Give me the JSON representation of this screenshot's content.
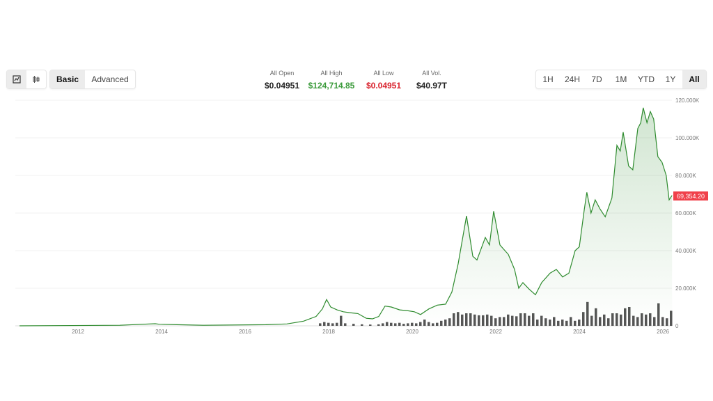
{
  "toolbar": {
    "chart_types": [
      "line-chart-icon",
      "candlestick-icon"
    ],
    "modes": [
      "Basic",
      "Advanced"
    ],
    "active_mode": "Basic",
    "ranges": [
      "1H",
      "24H",
      "7D",
      "1M",
      "YTD",
      "1Y",
      "All"
    ],
    "active_range": "All"
  },
  "stats": [
    {
      "label": "All Open",
      "value": "$0.04951",
      "color": "#222222"
    },
    {
      "label": "All High",
      "value": "$124,714.85",
      "color": "#3a9a3a"
    },
    {
      "label": "All Low",
      "value": "$0.04951",
      "color": "#d9232e"
    },
    {
      "label": "All Vol.",
      "value": "$40.97T",
      "color": "#222222"
    }
  ],
  "chart_data": {
    "type": "area",
    "line_color": "#2e8b2e",
    "current_price_label": "69,354.20",
    "current_price_color": "#f0414b",
    "x_ticks": [
      "2012",
      "2014",
      "2016",
      "2018",
      "2020",
      "2022",
      "2024",
      "2026"
    ],
    "y_ticks": [
      "0",
      "20.000K",
      "40.000K",
      "60.000K",
      "80.000K",
      "100.000K",
      "120.000K"
    ],
    "ylim": [
      0,
      120000
    ],
    "xlim": [
      2010.6,
      2026.3
    ],
    "grid": true,
    "price": {
      "x": [
        2010.6,
        2013.0,
        2013.85,
        2013.95,
        2015.0,
        2016.5,
        2017.0,
        2017.4,
        2017.7,
        2017.85,
        2017.95,
        2018.05,
        2018.2,
        2018.35,
        2018.5,
        2018.7,
        2018.9,
        2019.05,
        2019.2,
        2019.35,
        2019.5,
        2019.7,
        2019.9,
        2020.05,
        2020.2,
        2020.4,
        2020.6,
        2020.8,
        2020.95,
        2021.1,
        2021.3,
        2021.45,
        2021.55,
        2021.75,
        2021.85,
        2021.95,
        2022.1,
        2022.3,
        2022.45,
        2022.55,
        2022.65,
        2022.8,
        2022.95,
        2023.1,
        2023.3,
        2023.45,
        2023.6,
        2023.75,
        2023.9,
        2024.0,
        2024.12,
        2024.18,
        2024.28,
        2024.38,
        2024.5,
        2024.62,
        2024.78,
        2024.9,
        2024.98,
        2025.05,
        2025.18,
        2025.28,
        2025.4,
        2025.47,
        2025.53,
        2025.62,
        2025.7,
        2025.78,
        2025.88,
        2025.98,
        2026.08,
        2026.15,
        2026.22
      ],
      "y": [
        0,
        300,
        1100,
        800,
        300,
        600,
        1000,
        2500,
        5000,
        9000,
        14000,
        10000,
        8500,
        7500,
        7000,
        6500,
        4000,
        3700,
        5000,
        10500,
        10000,
        8500,
        8000,
        7500,
        6000,
        9000,
        11000,
        11500,
        18000,
        33000,
        58500,
        37000,
        35000,
        47000,
        43000,
        61000,
        43000,
        38000,
        30000,
        20000,
        23000,
        19500,
        16500,
        23000,
        28000,
        30000,
        26000,
        28000,
        40000,
        42000,
        62000,
        71000,
        60000,
        67000,
        62000,
        58000,
        68000,
        96000,
        93000,
        103000,
        85000,
        83000,
        105000,
        108000,
        116000,
        108000,
        114000,
        110000,
        90000,
        87000,
        80000,
        67000,
        69354
      ]
    },
    "volume": {
      "x": [
        2017.8,
        2017.9,
        2018.0,
        2018.1,
        2018.2,
        2018.3,
        2018.4,
        2018.6,
        2018.8,
        2019.0,
        2019.2,
        2019.3,
        2019.4,
        2019.5,
        2019.6,
        2019.7,
        2019.8,
        2019.9,
        2020.0,
        2020.1,
        2020.2,
        2020.3,
        2020.4,
        2020.5,
        2020.6,
        2020.7,
        2020.8,
        2020.9,
        2021.0,
        2021.1,
        2021.2,
        2021.3,
        2021.4,
        2021.5,
        2021.6,
        2021.7,
        2021.8,
        2021.9,
        2022.0,
        2022.1,
        2022.2,
        2022.3,
        2022.4,
        2022.5,
        2022.6,
        2022.7,
        2022.8,
        2022.9,
        2023.0,
        2023.1,
        2023.2,
        2023.3,
        2023.4,
        2023.5,
        2023.6,
        2023.7,
        2023.8,
        2023.9,
        2024.0,
        2024.1,
        2024.2,
        2024.3,
        2024.4,
        2024.5,
        2024.6,
        2024.7,
        2024.8,
        2024.9,
        2025.0,
        2025.1,
        2025.2,
        2025.3,
        2025.4,
        2025.5,
        2025.6,
        2025.7,
        2025.8,
        2025.9,
        2026.0,
        2026.1,
        2026.2
      ],
      "y": [
        10,
        15,
        12,
        10,
        12,
        40,
        10,
        8,
        6,
        5,
        6,
        10,
        15,
        12,
        10,
        12,
        8,
        10,
        12,
        10,
        15,
        25,
        15,
        10,
        12,
        20,
        25,
        30,
        50,
        55,
        45,
        50,
        50,
        45,
        42,
        42,
        45,
        40,
        30,
        35,
        35,
        45,
        40,
        38,
        50,
        50,
        40,
        50,
        25,
        40,
        30,
        25,
        35,
        20,
        25,
        20,
        35,
        20,
        25,
        55,
        95,
        40,
        70,
        35,
        45,
        30,
        50,
        50,
        45,
        70,
        75,
        40,
        35,
        50,
        45,
        50,
        35,
        90,
        35,
        30,
        60
      ]
    }
  }
}
